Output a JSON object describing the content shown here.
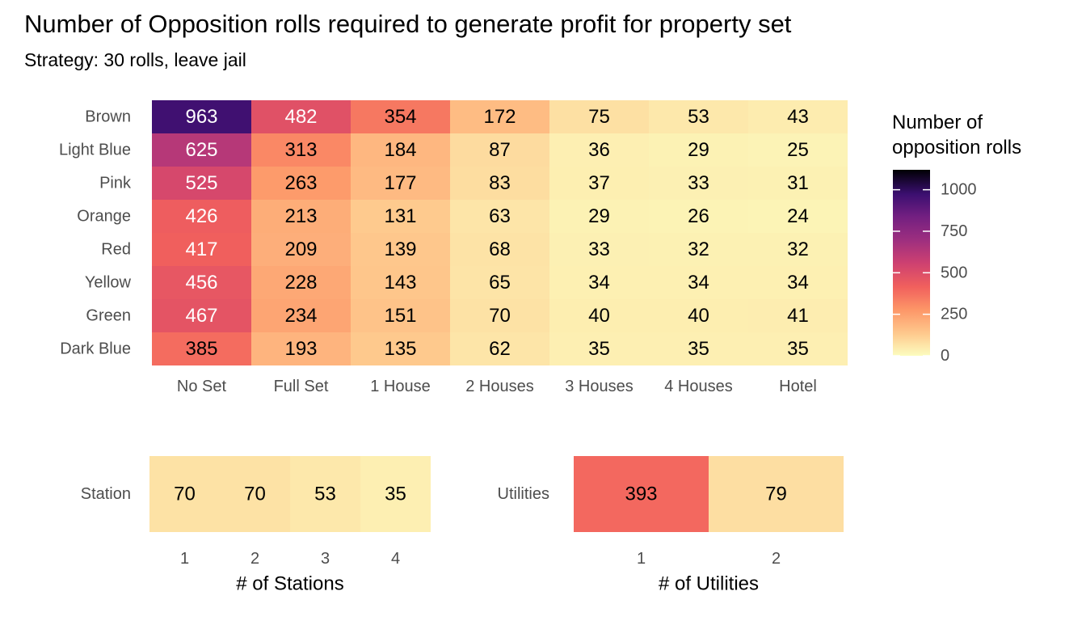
{
  "title": "Number of Opposition rolls required to generate profit for property set",
  "subtitle": "Strategy: 30 rolls, leave jail",
  "legend": {
    "title_line1": "Number of",
    "title_line2": "opposition rolls",
    "ticks": [
      1000,
      750,
      500,
      250,
      0
    ],
    "range": [
      0,
      1120
    ]
  },
  "chart_data": [
    {
      "type": "heatmap",
      "rows": [
        "Brown",
        "Light Blue",
        "Pink",
        "Orange",
        "Red",
        "Yellow",
        "Green",
        "Dark Blue"
      ],
      "columns": [
        "No Set",
        "Full Set",
        "1 House",
        "2 Houses",
        "3 Houses",
        "4 Houses",
        "Hotel"
      ],
      "values": [
        [
          963,
          482,
          354,
          172,
          75,
          53,
          43
        ],
        [
          625,
          313,
          184,
          87,
          36,
          29,
          25
        ],
        [
          525,
          263,
          177,
          83,
          37,
          33,
          31
        ],
        [
          426,
          213,
          131,
          63,
          29,
          26,
          24
        ],
        [
          417,
          209,
          139,
          68,
          33,
          32,
          32
        ],
        [
          456,
          228,
          143,
          65,
          34,
          34,
          34
        ],
        [
          467,
          234,
          151,
          70,
          40,
          40,
          41
        ],
        [
          385,
          193,
          135,
          62,
          35,
          35,
          35
        ]
      ]
    },
    {
      "type": "heatmap",
      "row_label": "Station",
      "columns": [
        "1",
        "2",
        "3",
        "4"
      ],
      "values": [
        70,
        70,
        53,
        35
      ],
      "xlabel": "# of Stations"
    },
    {
      "type": "heatmap",
      "row_label": "Utilities",
      "columns": [
        "1",
        "2"
      ],
      "values": [
        393,
        79
      ],
      "xlabel": "# of Utilities"
    }
  ]
}
